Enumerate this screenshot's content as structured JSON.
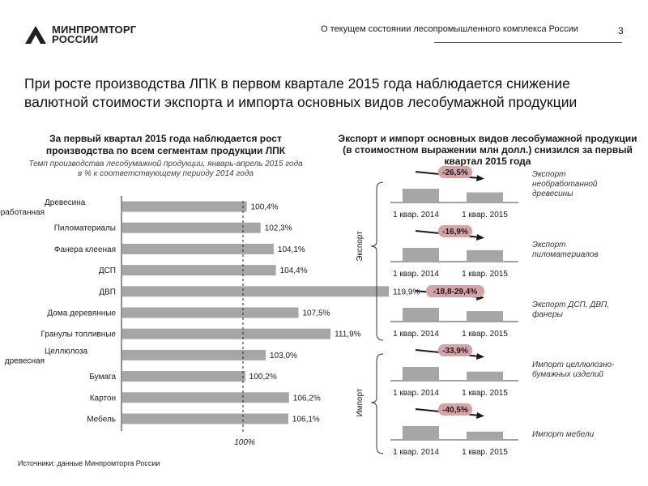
{
  "header": {
    "logo_line1": "МИНПРОМТОРГ",
    "logo_line2": "РОССИИ",
    "title": "О текущем состоянии лесопромышленного комплекса России",
    "page_number": "3"
  },
  "main_title": "При росте производства ЛПК в первом квартале 2015 года наблюдается снижение валютной стоимости экспорта и импорта основных видов лесобумажной продукции",
  "left": {
    "subtitle": "За первый квартал 2015 года наблюдается рост производства по всем сегментам продукции ЛПК",
    "note": "Темп производства лесобумажной продукции, январь-апрель 2015 года в % к соответствующему периоду 2014 года"
  },
  "right": {
    "subtitle": "Экспорт и импорт основных видов лесобумажной продукции (в стоимостном выражении млн долл.) снизился за первый квартал 2015 года",
    "group_export": "Экспорт",
    "group_import": "Импорт"
  },
  "source": "Источники: данные Минпромторга России",
  "colors": {
    "bar": "#a6a6a6",
    "badge": "#d7a3a7",
    "arrow": "#1a1a1a",
    "axis": "#222222"
  },
  "chart_data": [
    {
      "type": "bar",
      "orientation": "horizontal",
      "categories": [
        "Древесина необработанная",
        "Пиломатериалы",
        "Фанера клееная",
        "ДСП",
        "ДВП",
        "Дома деревянные",
        "Гранулы топливные",
        "Целлюлоза древесная",
        "Бумага",
        "Картон",
        "Мебель"
      ],
      "values": [
        100.4,
        102.3,
        104.1,
        104.4,
        119.9,
        107.5,
        111.9,
        103.0,
        100.2,
        106.2,
        106.1
      ],
      "value_labels": [
        "100,4%",
        "102,3%",
        "104,1%",
        "104,4%",
        "119,9%",
        "107,5%",
        "111,9%",
        "103,0%",
        "100,2%",
        "106,2%",
        "106,1%"
      ],
      "reference_line": 100,
      "reference_label": "100%"
    },
    {
      "type": "bar",
      "categories": [
        "1 квар. 2014",
        "1 квар. 2015"
      ],
      "panels": [
        {
          "group": "Экспорт",
          "name": "Экспорт необработанной древесины",
          "change": "-26,5%",
          "values": [
            100,
            73.5
          ]
        },
        {
          "group": "Экспорт",
          "name": "Экспорт пиломатериалов",
          "change": "-16,9%",
          "values": [
            100,
            83.1
          ]
        },
        {
          "group": "Экспорт",
          "name": "Экспорт ДСП, ДВП, фанеры",
          "change": "-18,8-29,4%",
          "values": [
            100,
            76
          ]
        },
        {
          "group": "Импорт",
          "name": "Импорт целлюлозно-бумажных изделий",
          "change": "-33,9%",
          "values": [
            100,
            66.1
          ]
        },
        {
          "group": "Импорт",
          "name": "Импорт мебели",
          "change": "-40,5%",
          "values": [
            100,
            59.5
          ]
        }
      ]
    }
  ]
}
